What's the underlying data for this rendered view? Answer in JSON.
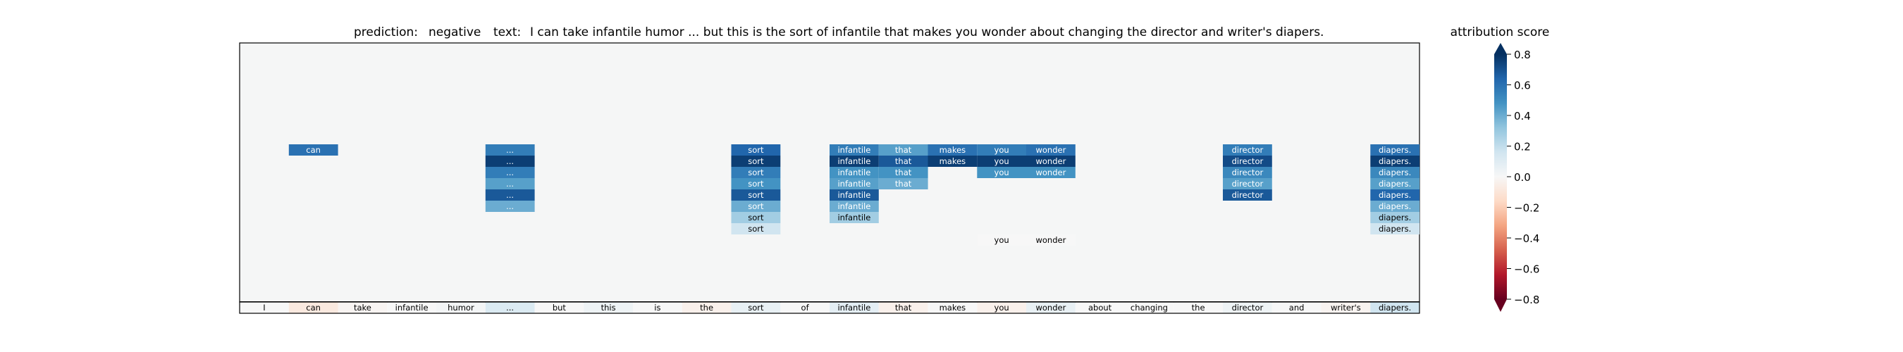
{
  "chart_data": {
    "type": "heatmap",
    "title": {
      "prediction_label": "prediction:",
      "prediction_value": "negative",
      "text_label": "text:",
      "text_value": "I can take infantile humor ... but this is the sort of infantile that makes you wonder about changing the director and writer's diapers."
    },
    "tokens": [
      "I",
      "can",
      "take",
      "infantile",
      "humor",
      "...",
      "but",
      "this",
      "is",
      "the",
      "sort",
      "of",
      "infantile",
      "that",
      "makes",
      "you",
      "wonder",
      "about",
      "changing",
      "the",
      "director",
      "and",
      "writer's",
      "diapers."
    ],
    "token_scores": [
      0.0,
      -0.1,
      -0.02,
      0.0,
      0.02,
      0.15,
      0.0,
      0.05,
      0.0,
      -0.05,
      0.08,
      0.0,
      0.1,
      -0.05,
      0.0,
      -0.05,
      0.08,
      0.0,
      0.0,
      0.0,
      0.05,
      0.0,
      -0.03,
      0.2
    ],
    "layers": 24,
    "cells": [
      {
        "token": 1,
        "layer": 9,
        "value": 0.75
      },
      {
        "token": 5,
        "layer": 9,
        "value": 0.7
      },
      {
        "token": 5,
        "layer": 10,
        "value": 0.95
      },
      {
        "token": 5,
        "layer": 11,
        "value": 0.7
      },
      {
        "token": 5,
        "layer": 12,
        "value": 0.55
      },
      {
        "token": 5,
        "layer": 13,
        "value": 0.85
      },
      {
        "token": 5,
        "layer": 14,
        "value": 0.5
      },
      {
        "token": 10,
        "layer": 9,
        "value": 0.8
      },
      {
        "token": 10,
        "layer": 10,
        "value": 0.95
      },
      {
        "token": 10,
        "layer": 11,
        "value": 0.7
      },
      {
        "token": 10,
        "layer": 12,
        "value": 0.6
      },
      {
        "token": 10,
        "layer": 13,
        "value": 0.85
      },
      {
        "token": 10,
        "layer": 14,
        "value": 0.5
      },
      {
        "token": 10,
        "layer": 15,
        "value": 0.35
      },
      {
        "token": 10,
        "layer": 16,
        "value": 0.2
      },
      {
        "token": 12,
        "layer": 9,
        "value": 0.7
      },
      {
        "token": 12,
        "layer": 10,
        "value": 0.95
      },
      {
        "token": 12,
        "layer": 11,
        "value": 0.6
      },
      {
        "token": 12,
        "layer": 12,
        "value": 0.55
      },
      {
        "token": 12,
        "layer": 13,
        "value": 0.85
      },
      {
        "token": 12,
        "layer": 14,
        "value": 0.5
      },
      {
        "token": 12,
        "layer": 15,
        "value": 0.35
      },
      {
        "token": 13,
        "layer": 9,
        "value": 0.55
      },
      {
        "token": 13,
        "layer": 10,
        "value": 0.85
      },
      {
        "token": 13,
        "layer": 11,
        "value": 0.6
      },
      {
        "token": 13,
        "layer": 12,
        "value": 0.5
      },
      {
        "token": 14,
        "layer": 9,
        "value": 0.75
      },
      {
        "token": 14,
        "layer": 10,
        "value": 0.95
      },
      {
        "token": 15,
        "layer": 9,
        "value": 0.7
      },
      {
        "token": 15,
        "layer": 10,
        "value": 0.95
      },
      {
        "token": 15,
        "layer": 11,
        "value": 0.6
      },
      {
        "token": 15,
        "layer": 17,
        "value": 0.0
      },
      {
        "token": 16,
        "layer": 9,
        "value": 0.75
      },
      {
        "token": 16,
        "layer": 10,
        "value": 0.95
      },
      {
        "token": 16,
        "layer": 11,
        "value": 0.6
      },
      {
        "token": 16,
        "layer": 17,
        "value": 0.0
      },
      {
        "token": 20,
        "layer": 9,
        "value": 0.7
      },
      {
        "token": 20,
        "layer": 10,
        "value": 0.9
      },
      {
        "token": 20,
        "layer": 11,
        "value": 0.65
      },
      {
        "token": 20,
        "layer": 12,
        "value": 0.55
      },
      {
        "token": 20,
        "layer": 13,
        "value": 0.85
      },
      {
        "token": 23,
        "layer": 9,
        "value": 0.75
      },
      {
        "token": 23,
        "layer": 10,
        "value": 0.95
      },
      {
        "token": 23,
        "layer": 11,
        "value": 0.65
      },
      {
        "token": 23,
        "layer": 12,
        "value": 0.55
      },
      {
        "token": 23,
        "layer": 13,
        "value": 0.8
      },
      {
        "token": 23,
        "layer": 14,
        "value": 0.5
      },
      {
        "token": 23,
        "layer": 15,
        "value": 0.35
      },
      {
        "token": 23,
        "layer": 16,
        "value": 0.2
      }
    ],
    "colorbar": {
      "label": "attribution score",
      "ticks": [
        "0.8",
        "0.6",
        "0.4",
        "0.2",
        "0.0",
        "−0.2",
        "−0.4",
        "−0.6",
        "−0.8"
      ],
      "tick_values": [
        0.8,
        0.6,
        0.4,
        0.2,
        0.0,
        -0.2,
        -0.4,
        -0.6,
        -0.8
      ],
      "range": [
        -0.8,
        0.8
      ],
      "colormap": "RdBu"
    },
    "grid": false,
    "legend": "colorbar-right"
  }
}
